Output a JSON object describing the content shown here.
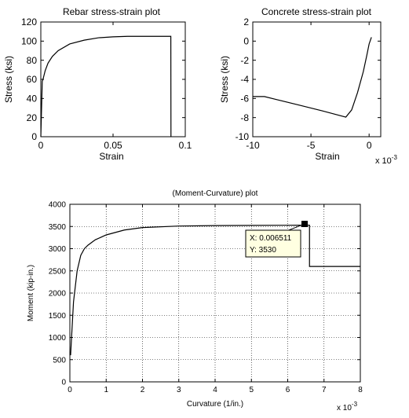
{
  "chart_data": [
    {
      "type": "line",
      "title": "Rebar stress-strain plot",
      "xlabel": "Strain",
      "ylabel": "Stress (ksi)",
      "xlim": [
        0,
        0.1
      ],
      "ylim": [
        0,
        120
      ],
      "xticks": [
        0,
        0.05,
        0.1
      ],
      "xtick_labels": [
        "0",
        "0.05",
        "0.1"
      ],
      "yticks": [
        0,
        20,
        40,
        60,
        80,
        100,
        120
      ],
      "ytick_labels": [
        "0",
        "20",
        "40",
        "60",
        "80",
        "100",
        "120"
      ],
      "x_exponent_label": "",
      "grid": false,
      "series": [
        {
          "x": [
            0,
            0.0005,
            0.001,
            0.0015,
            0.002,
            0.003,
            0.005,
            0.008,
            0.012,
            0.02,
            0.03,
            0.04,
            0.05,
            0.06,
            0.07,
            0.08,
            0.09,
            0.0901
          ],
          "y": [
            0,
            29,
            58,
            60,
            63,
            69,
            77,
            84,
            90,
            97,
            101,
            103.5,
            104.5,
            105,
            105,
            105,
            105,
            0
          ]
        }
      ]
    },
    {
      "type": "line",
      "title": "Concrete stress-strain plot",
      "xlabel": "Strain",
      "ylabel": "Stress (ksi)",
      "xlim": [
        -0.01,
        0.001
      ],
      "ylim": [
        -10,
        2
      ],
      "xticks": [
        -0.01,
        -0.005,
        0
      ],
      "xtick_labels": [
        "-10",
        "-5",
        "0"
      ],
      "yticks": [
        -10,
        -8,
        -6,
        -4,
        -2,
        0,
        2
      ],
      "ytick_labels": [
        "-10",
        "-8",
        "-6",
        "-4",
        "-2",
        "0",
        "2"
      ],
      "x_exponent_label": "x 10",
      "x_exponent_power": "-3",
      "grid": false,
      "series": [
        {
          "x": [
            -0.01,
            -0.009,
            -0.008,
            -0.006,
            -0.004,
            -0.002,
            -0.0015,
            -0.001,
            -0.0005,
            -0.0002,
            0,
            0.0002
          ],
          "y": [
            -5.8,
            -5.8,
            -6.1,
            -6.7,
            -7.3,
            -7.95,
            -7.2,
            -5.4,
            -3.2,
            -1.5,
            -0.3,
            0.4
          ]
        }
      ]
    },
    {
      "type": "line",
      "title": "(Moment-Curvature) plot",
      "xlabel": "Curvature (1/in.)",
      "ylabel": "Moment (kip-in.)",
      "xlim": [
        0,
        0.008
      ],
      "ylim": [
        0,
        4000
      ],
      "xticks": [
        0,
        0.001,
        0.002,
        0.003,
        0.004,
        0.005,
        0.006,
        0.007,
        0.008
      ],
      "xtick_labels": [
        "0",
        "1",
        "2",
        "3",
        "4",
        "5",
        "6",
        "7",
        "8"
      ],
      "yticks": [
        0,
        500,
        1000,
        1500,
        2000,
        2500,
        3000,
        3500,
        4000
      ],
      "ytick_labels": [
        "0",
        "500",
        "1000",
        "1500",
        "2000",
        "2500",
        "3000",
        "3500",
        "4000"
      ],
      "x_exponent_label": "x 10",
      "x_exponent_power": "-3",
      "grid": true,
      "series": [
        {
          "x": [
            2e-05,
            0.0001,
            0.0002,
            0.0003,
            0.0004,
            0.0005,
            0.0007,
            0.001,
            0.0015,
            0.002,
            0.003,
            0.004,
            0.005,
            0.006,
            0.006511,
            0.0066,
            0.0066,
            0.008
          ],
          "y": [
            600,
            1800,
            2500,
            2850,
            3000,
            3080,
            3200,
            3310,
            3420,
            3475,
            3510,
            3520,
            3525,
            3528,
            3530,
            3530,
            2600,
            2600
          ]
        }
      ],
      "datatip": {
        "x_label": "X: 0.006511",
        "y_label": "Y: 3530",
        "x": 0.006511,
        "y": 3530
      }
    }
  ]
}
